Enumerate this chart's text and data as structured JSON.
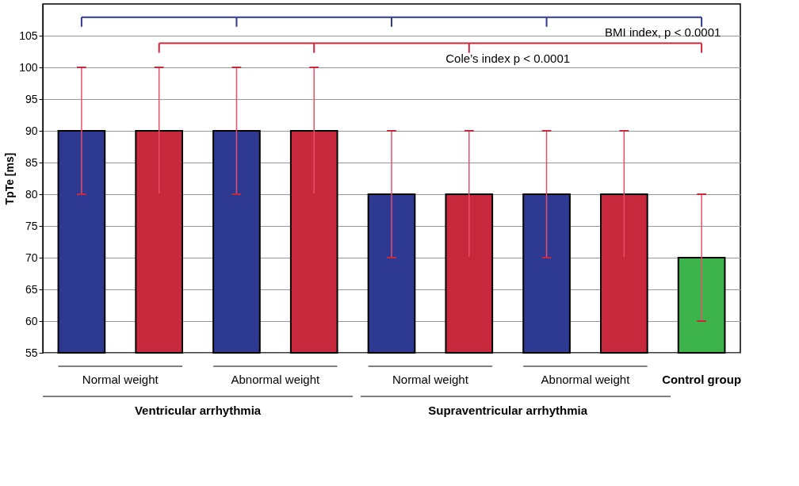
{
  "chart_data": {
    "type": "bar",
    "ylabel": "TpTe [ms]",
    "categories": [
      "Normal weight",
      null,
      "Abnormal weight",
      null,
      "Normal weight",
      null,
      "Abnormal weight",
      null,
      "Control group"
    ],
    "values": [
      90,
      90,
      90,
      90,
      80,
      80,
      80,
      80,
      70
    ],
    "colors": [
      "#2e3a92",
      "#c8283c",
      "#2e3a92",
      "#c8283c",
      "#2e3a92",
      "#c8283c",
      "#2e3a92",
      "#c8283c",
      "#3cb44b"
    ],
    "errors": [
      [
        80,
        100
      ],
      [
        80,
        100
      ],
      [
        80,
        100
      ],
      [
        80,
        100
      ],
      [
        70,
        90
      ],
      [
        70,
        90
      ],
      [
        70,
        90
      ],
      [
        70,
        90
      ],
      [
        60,
        80
      ]
    ],
    "ylim": [
      55,
      110
    ],
    "yticks": [
      55,
      60,
      65,
      70,
      75,
      80,
      85,
      90,
      95,
      100,
      105
    ],
    "grid": "y",
    "annotations": [
      "BMI index, p < 0.0001",
      "Cole’s index p < 0.0001",
      "Ventricular arrhythmia",
      "Supraventricular arrhythmia"
    ]
  }
}
